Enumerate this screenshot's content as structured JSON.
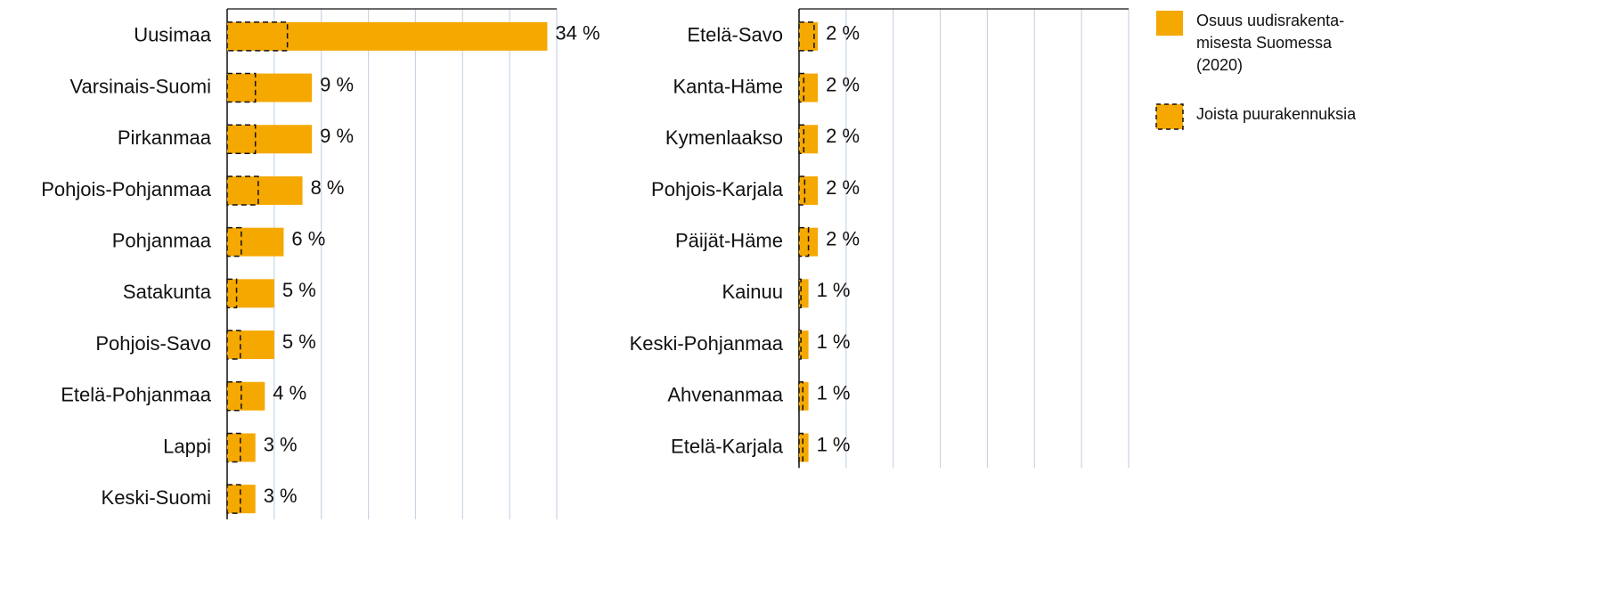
{
  "chart_data": [
    {
      "type": "hbar",
      "categories": [
        "Uusimaa",
        "Varsinais-Suomi",
        "Pirkanmaa",
        "Pohjois-Pohjanmaa",
        "Pohjanmaa",
        "Satakunta",
        "Pohjois-Savo",
        "Etelä-Pohjanmaa",
        "Lappi",
        "Keski-Suomi"
      ],
      "series": [
        {
          "name": "Osuus uudisrakenta-\nmisesta Suomessa\n(2020)",
          "color": "#f5a800",
          "dashed": false,
          "values": [
            34,
            9,
            9,
            8,
            6,
            5,
            5,
            4,
            3,
            3
          ],
          "value_labels": [
            "34 %",
            "9 %",
            "9 %",
            "8 %",
            "6 %",
            "5 %",
            "5 %",
            "4 %",
            "3 %",
            "3 %"
          ]
        },
        {
          "name": "Joista puurakennuksia",
          "color": "#f5a800",
          "dashed": true,
          "values": [
            6.4,
            3.0,
            3.0,
            3.3,
            1.5,
            1.0,
            1.4,
            1.5,
            1.4,
            1.4
          ]
        }
      ],
      "xlim": [
        0,
        35
      ],
      "xticks": [
        0,
        5,
        10,
        15,
        20,
        25,
        30,
        35
      ],
      "grid": true
    },
    {
      "type": "hbar",
      "categories": [
        "Etelä-Savo",
        "Kanta-Häme",
        "Kymenlaakso",
        "Pohjois-Karjala",
        "Päijät-Häme",
        "Kainuu",
        "Keski-Pohjanmaa",
        "Ahvenanmaa",
        "Etelä-Karjala"
      ],
      "series": [
        {
          "color": "#f5a800",
          "dashed": false,
          "values": [
            2,
            2,
            2,
            2,
            2,
            1,
            1,
            1,
            1
          ],
          "value_labels": [
            "2 %",
            "2 %",
            "2 %",
            "2 %",
            "2 %",
            "1 %",
            "1 %",
            "1 %",
            "1 %"
          ]
        },
        {
          "color": "#f5a800",
          "dashed": true,
          "values": [
            1.6,
            0.5,
            0.5,
            0.6,
            1.0,
            0.2,
            0.2,
            0.4,
            0.4
          ]
        }
      ],
      "xlim": [
        0,
        35
      ],
      "xticks": [
        0,
        5,
        10,
        15,
        20,
        25,
        30,
        35
      ],
      "grid": true
    }
  ]
}
